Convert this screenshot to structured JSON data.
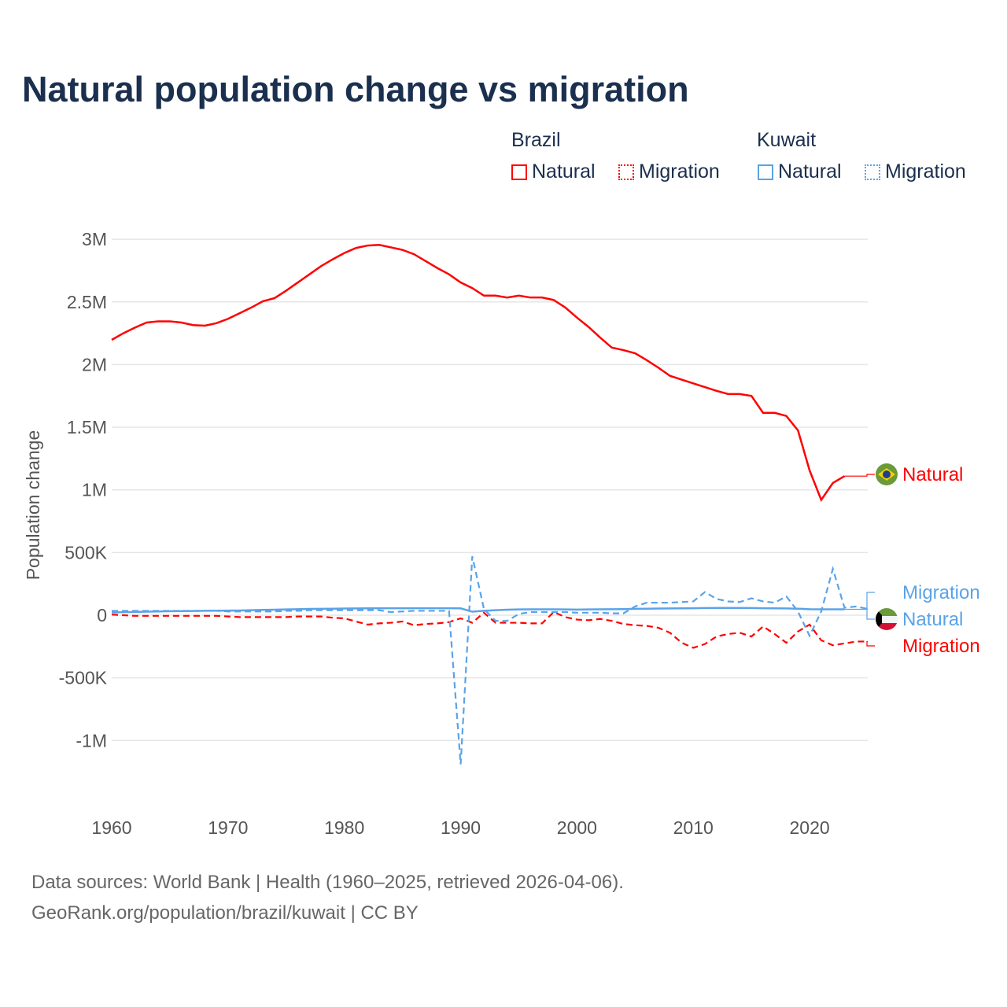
{
  "colors": {
    "brazil": "#ff0000",
    "kuwait": "#5aa3e8",
    "title": "#1b2f4e"
  },
  "chart_data": {
    "type": "line",
    "title": "Natural population change vs migration",
    "ylabel": "Population change",
    "xlabel": "",
    "ylim": [
      -1300000,
      3150000
    ],
    "xlim": [
      1960,
      2025
    ],
    "grid": true,
    "legend_placement": "top-right",
    "yticks": [
      {
        "v": 3000000,
        "label": "3M"
      },
      {
        "v": 2500000,
        "label": "2.5M"
      },
      {
        "v": 2000000,
        "label": "2M"
      },
      {
        "v": 1500000,
        "label": "1.5M"
      },
      {
        "v": 1000000,
        "label": "1M"
      },
      {
        "v": 500000,
        "label": "500K"
      },
      {
        "v": 0,
        "label": "0"
      },
      {
        "v": -500000,
        "label": "-500K"
      },
      {
        "v": -1000000,
        "label": "-1M"
      }
    ],
    "xticks": [
      1960,
      1970,
      1980,
      1990,
      2000,
      2010,
      2020
    ],
    "legend": {
      "groups": [
        {
          "country": "Brazil",
          "items": [
            "Natural",
            "Migration"
          ]
        },
        {
          "country": "Kuwait",
          "items": [
            "Natural",
            "Migration"
          ]
        }
      ]
    },
    "series": [
      {
        "name": "Brazil Natural",
        "country": "Brazil",
        "kind": "Natural",
        "label": "Natural",
        "start": 1960,
        "unit": 1000,
        "values": [
          2197,
          2250,
          2295,
          2335,
          2345,
          2345,
          2335,
          2315,
          2310,
          2330,
          2365,
          2410,
          2455,
          2505,
          2530,
          2590,
          2655,
          2720,
          2785,
          2840,
          2890,
          2930,
          2950,
          2955,
          2935,
          2915,
          2880,
          2825,
          2770,
          2720,
          2655,
          2610,
          2550,
          2550,
          2535,
          2550,
          2535,
          2535,
          2515,
          2455,
          2375,
          2300,
          2215,
          2135,
          2115,
          2090,
          2035,
          1975,
          1910,
          1880,
          1850,
          1820,
          1790,
          1765,
          1765,
          1750,
          1615,
          1615,
          1590,
          1475,
          1155,
          920,
          1055,
          1110
        ]
      },
      {
        "name": "Brazil Migration",
        "country": "Brazil",
        "kind": "Migration",
        "label": "Migration",
        "start": 1960,
        "unit": 1000,
        "values": [
          5,
          0,
          -5,
          -5,
          -5,
          -5,
          -5,
          -5,
          -5,
          -5,
          -10,
          -15,
          -15,
          -15,
          -15,
          -15,
          -10,
          -10,
          -10,
          -20,
          -25,
          -50,
          -75,
          -65,
          -60,
          -50,
          -80,
          -70,
          -65,
          -55,
          -25,
          -60,
          20,
          -60,
          -60,
          -60,
          -65,
          -65,
          25,
          -15,
          -35,
          -40,
          -30,
          -45,
          -70,
          -80,
          -85,
          -100,
          -140,
          -220,
          -260,
          -230,
          -170,
          -150,
          -140,
          -170,
          -90,
          -150,
          -220,
          -130,
          -75,
          -200,
          -240,
          -225,
          -210,
          -210
        ]
      },
      {
        "name": "Kuwait Natural",
        "country": "Kuwait",
        "kind": "Natural",
        "label": "Natural",
        "start": 1960,
        "unit": 1000,
        "values": [
          22,
          24,
          26,
          28,
          30,
          32,
          33,
          34,
          35,
          36,
          37,
          38,
          40,
          42,
          44,
          46,
          48,
          50,
          51,
          52,
          53,
          54,
          55,
          56,
          56,
          56,
          56,
          56,
          56,
          56,
          55,
          28,
          35,
          40,
          44,
          46,
          47,
          47,
          47,
          46,
          45,
          46,
          47,
          48,
          49,
          51,
          52,
          53,
          54,
          55,
          56,
          57,
          58,
          58,
          58,
          57,
          56,
          55,
          54,
          52,
          48,
          47,
          47,
          47
        ]
      },
      {
        "name": "Kuwait Migration",
        "country": "Kuwait",
        "kind": "Migration",
        "label": "Migration",
        "start": 1960,
        "unit": 1000,
        "values": [
          35,
          35,
          35,
          35,
          35,
          35,
          35,
          35,
          35,
          35,
          30,
          30,
          30,
          30,
          30,
          35,
          35,
          40,
          40,
          40,
          40,
          40,
          40,
          40,
          25,
          30,
          35,
          35,
          35,
          35,
          -1190,
          470,
          50,
          -45,
          -45,
          10,
          25,
          25,
          25,
          25,
          20,
          20,
          20,
          15,
          15,
          70,
          100,
          100,
          100,
          105,
          110,
          185,
          130,
          110,
          105,
          135,
          110,
          100,
          150,
          30,
          -165,
          30,
          370,
          60,
          70,
          50
        ]
      }
    ]
  },
  "footer": {
    "line1": "Data sources: World Bank | Health (1960–2025, retrieved 2026-04-06).",
    "line2": "GeoRank.org/population/brazil/kuwait | CC BY"
  }
}
